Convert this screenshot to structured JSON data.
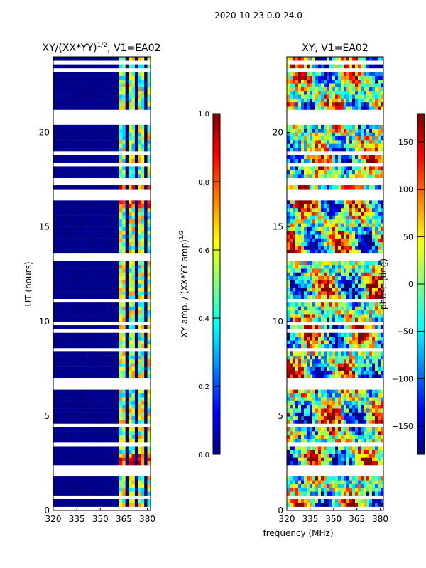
{
  "suptitle": "2020-10-23 0.0-24.0",
  "colors": {
    "background": "#ffffff",
    "dark_blue": "#00007f",
    "axis": "#000000"
  },
  "chart_data": [
    {
      "type": "heatmap",
      "title_base": "XY/(XX*YY)",
      "title_sup": "1/2",
      "title_suffix": ", V1=EA02",
      "xlabel": "",
      "ylabel": "UT (hours)",
      "xlim": [
        320,
        382
      ],
      "ylim": [
        0,
        24
      ],
      "xticks": [
        320,
        335,
        350,
        365,
        380
      ],
      "yticks": [
        0,
        5,
        10,
        15,
        20
      ],
      "colorbar": {
        "label_base": "XY amp. / (XX*YY amp)",
        "label_sup": "1/2",
        "range": [
          0.0,
          1.0
        ],
        "ticks": [
          "0.0",
          "0.2",
          "0.4",
          "0.6",
          "0.8",
          "1.0"
        ]
      }
    },
    {
      "type": "heatmap",
      "title_base": "XY, V1=EA02",
      "title_sup": "",
      "title_suffix": "",
      "xlabel": "frequency (MHz)",
      "ylabel": "",
      "xlim": [
        320,
        382
      ],
      "ylim": [
        0,
        24
      ],
      "xticks": [
        320,
        335,
        350,
        365,
        380
      ],
      "yticks": [
        0,
        5,
        10,
        15,
        20
      ],
      "colorbar": {
        "label_base": "phase (deg)",
        "label_sup": "",
        "range": [
          -180,
          180
        ],
        "ticks": [
          "−150",
          "−100",
          "−50",
          "0",
          "50",
          "100",
          "150"
        ]
      }
    }
  ]
}
